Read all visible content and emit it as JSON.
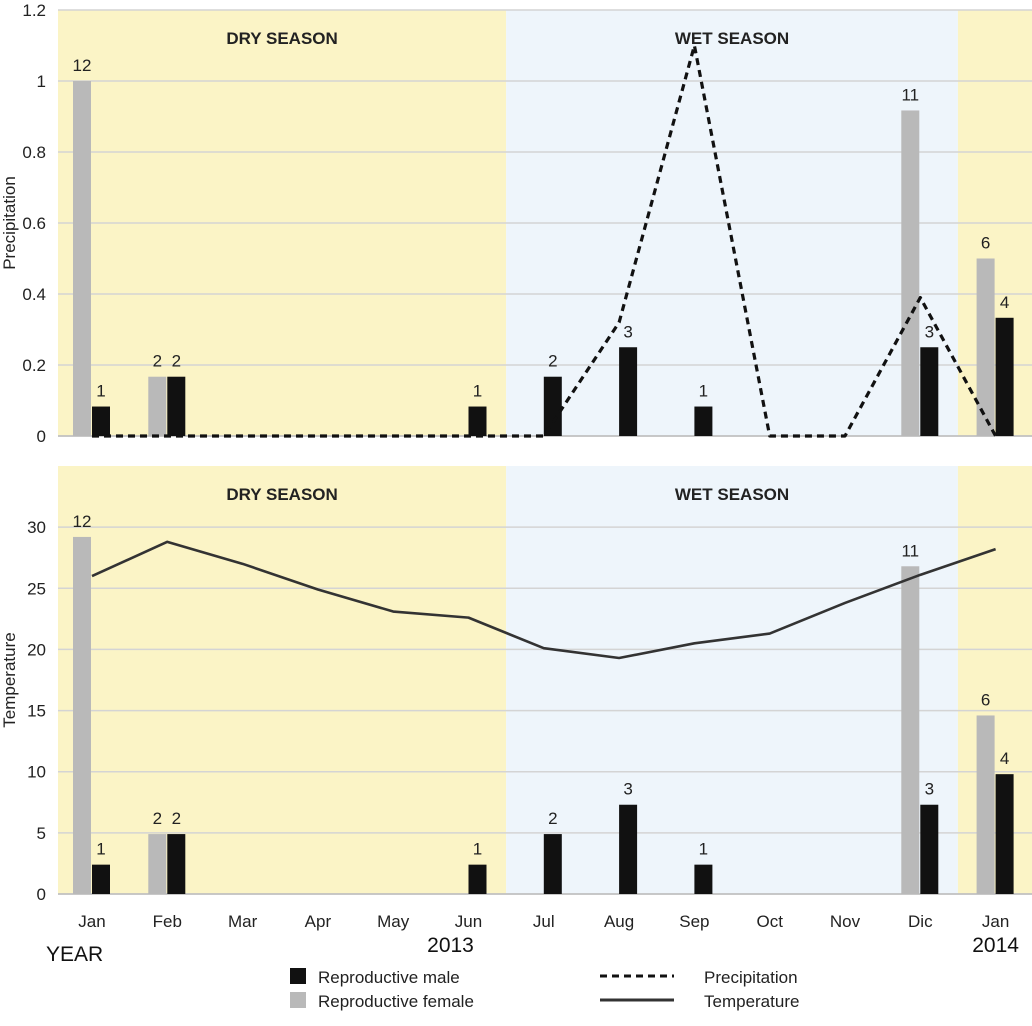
{
  "colors": {
    "dry_season": "#fbf4c6",
    "wet_season": "#eef5fb",
    "male": "#111111",
    "female": "#b9b9b9",
    "precip_line": "#111111",
    "temp_line": "#333333",
    "grid": "#d4d4d4"
  },
  "chart_data": [
    {
      "type": "bar",
      "title": "",
      "ylabel": "Precipitation",
      "xlabel": "",
      "ylim": [
        0,
        1.2
      ],
      "yticks": [
        "0",
        "0.2",
        "0.4",
        "0.6",
        "0.8",
        "1",
        "1.2"
      ],
      "ytick_values": [
        0,
        0.2,
        0.4,
        0.6,
        0.8,
        1.0,
        1.2
      ],
      "grid": true,
      "categories": [
        "Jan",
        "Feb",
        "Mar",
        "Apr",
        "May",
        "Jun",
        "Jul",
        "Aug",
        "Sep",
        "Oct",
        "Nov",
        "Dic",
        "Jan"
      ],
      "seasons": [
        {
          "label": "DRY SEASON",
          "from": 0,
          "to": 5.5
        },
        {
          "label": "WET SEASON",
          "from": 5.5,
          "to": 11.5
        },
        {
          "label": "",
          "from": 11.5,
          "to": 12
        }
      ],
      "series": [
        {
          "name": "Reproductive female",
          "kind": "bar",
          "values": [
            1.0,
            0.167,
            0,
            0,
            0,
            0,
            0,
            0,
            0,
            0,
            0,
            0.917,
            0.5
          ],
          "labels": [
            "12",
            "2",
            "",
            "",
            "",
            "",
            "",
            "",
            "",
            "",
            "",
            "11",
            "6"
          ]
        },
        {
          "name": "Reproductive male",
          "kind": "bar",
          "values": [
            0.083,
            0.167,
            0,
            0,
            0,
            0.083,
            0.167,
            0.25,
            0.083,
            0,
            0,
            0.25,
            0.333
          ],
          "labels": [
            "1",
            "2",
            "",
            "",
            "",
            "1",
            "2",
            "3",
            "1",
            "",
            "",
            "3",
            "4"
          ]
        },
        {
          "name": "Precipitation",
          "kind": "line",
          "style": "dashed",
          "values": [
            0,
            0,
            0,
            0,
            0,
            0,
            0,
            0.32,
            1.1,
            0,
            0,
            0.39,
            0
          ]
        }
      ]
    },
    {
      "type": "bar",
      "title": "",
      "ylabel": "Temperature",
      "xlabel": "",
      "ylim": [
        0,
        35
      ],
      "yticks": [
        "0",
        "5",
        "10",
        "15",
        "20",
        "25",
        "30"
      ],
      "ytick_values": [
        0,
        5,
        10,
        15,
        20,
        25,
        30
      ],
      "grid": true,
      "categories": [
        "Jan",
        "Feb",
        "Mar",
        "Apr",
        "May",
        "Jun",
        "Jul",
        "Aug",
        "Sep",
        "Oct",
        "Nov",
        "Dic",
        "Jan"
      ],
      "year_labels": {
        "prefix": "YEAR",
        "first_year": "2013",
        "second_year": "2014"
      },
      "seasons": [
        {
          "label": "DRY SEASON",
          "from": 0,
          "to": 5.5
        },
        {
          "label": "WET SEASON",
          "from": 5.5,
          "to": 11.5
        },
        {
          "label": "",
          "from": 11.5,
          "to": 12
        }
      ],
      "series": [
        {
          "name": "Reproductive female",
          "kind": "bar",
          "values": [
            29.2,
            4.9,
            0,
            0,
            0,
            0,
            0,
            0,
            0,
            0,
            0,
            26.8,
            14.6
          ],
          "labels": [
            "12",
            "2",
            "",
            "",
            "",
            "",
            "",
            "",
            "",
            "",
            "",
            "11",
            "6"
          ]
        },
        {
          "name": "Reproductive male",
          "kind": "bar",
          "values": [
            2.4,
            4.9,
            0,
            0,
            0,
            2.4,
            4.9,
            7.3,
            2.4,
            0,
            0,
            7.3,
            9.8
          ],
          "labels": [
            "1",
            "2",
            "",
            "",
            "",
            "1",
            "2",
            "3",
            "1",
            "",
            "",
            "3",
            "4"
          ]
        },
        {
          "name": "Temperature",
          "kind": "line",
          "style": "solid",
          "values": [
            26.0,
            28.8,
            27.0,
            24.9,
            23.1,
            22.6,
            20.1,
            19.3,
            20.5,
            21.3,
            23.8,
            26.1,
            28.2
          ]
        }
      ]
    }
  ],
  "legend": {
    "items": [
      {
        "label": "Reproductive male",
        "kind": "box",
        "colorKey": "male"
      },
      {
        "label": "Reproductive female",
        "kind": "box",
        "colorKey": "female"
      },
      {
        "label": "Precipitation",
        "kind": "dash",
        "colorKey": "precip_line"
      },
      {
        "label": "Temperature",
        "kind": "line",
        "colorKey": "temp_line"
      }
    ]
  }
}
